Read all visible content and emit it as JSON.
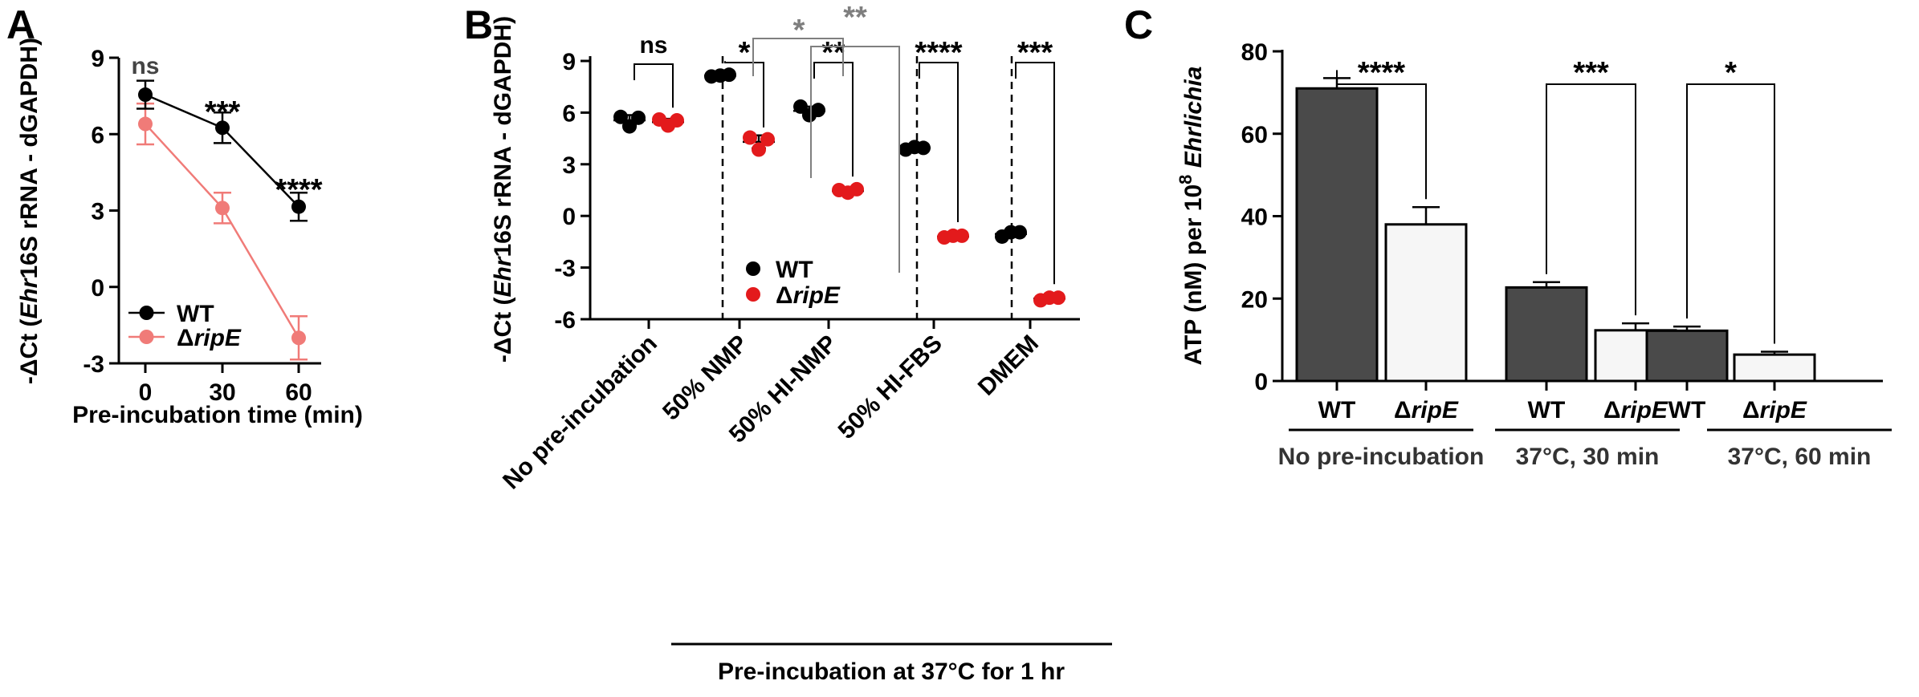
{
  "chart_data": [
    {
      "panel": "A",
      "type": "line",
      "ylabel": "-ΔCt (Ehr16S rRNA - dGAPDH)",
      "ylabel_parts": [
        "-ΔCt (",
        "Ehr",
        "16S rRNA - dGAPDH)"
      ],
      "xlabel": "Pre-incubation time (min)",
      "x": [
        0,
        30,
        60
      ],
      "x_tick_labels": [
        "0",
        "30",
        "60"
      ],
      "ylim": [
        -3,
        9
      ],
      "y_ticks": [
        -3,
        0,
        3,
        6,
        9
      ],
      "series": [
        {
          "name": "WT",
          "name_prefix": "",
          "name_italic": "WT",
          "color": "#000000",
          "values": [
            7.55,
            6.25,
            3.15
          ],
          "errors": [
            0.55,
            0.6,
            0.55
          ]
        },
        {
          "name": "ΔripE",
          "name_prefix": "Δ",
          "name_italic": "ripE",
          "color": "#f07b78",
          "values": [
            6.4,
            3.1,
            -2.0
          ],
          "errors": [
            0.8,
            0.6,
            0.85
          ]
        }
      ],
      "significance": [
        "ns",
        "***",
        "****"
      ],
      "legend": "bottom-left"
    },
    {
      "panel": "B",
      "type": "scatter",
      "ylabel": "-ΔCt (Ehr16S rRNA - dGAPDH)",
      "ylabel_parts": [
        "-ΔCt (",
        "Ehr",
        "16S rRNA - dGAPDH)"
      ],
      "ylim": [
        -6,
        9
      ],
      "y_ticks": [
        -6,
        -3,
        0,
        3,
        6,
        9
      ],
      "categories": [
        "No pre-incubation",
        "50% NMP",
        "50% HI-NMP",
        "50% HI-FBS",
        "DMEM"
      ],
      "group_label": "Pre-incubation at 37°C for 1 hr",
      "series": [
        {
          "name": "WT",
          "name_prefix": "",
          "name_italic": "WT",
          "color": "#000000",
          "points": [
            [
              5.75,
              5.2,
              5.7
            ],
            [
              8.1,
              8.15,
              8.2
            ],
            [
              6.35,
              5.85,
              6.15
            ],
            [
              3.85,
              4.0,
              3.95
            ],
            [
              -1.2,
              -0.95,
              -0.95
            ]
          ],
          "means": [
            5.55,
            8.15,
            6.1,
            3.95,
            -1.05
          ]
        },
        {
          "name": "ΔripE",
          "name_prefix": "Δ",
          "name_italic": "ripE",
          "color": "#e31a1c",
          "points": [
            [
              5.6,
              5.25,
              5.55
            ],
            [
              4.55,
              3.85,
              4.45
            ],
            [
              1.5,
              1.35,
              1.55
            ],
            [
              -1.25,
              -1.15,
              -1.15
            ],
            [
              -4.9,
              -4.75,
              -4.75
            ]
          ],
          "means": [
            5.45,
            4.3,
            1.45,
            -1.2,
            -4.8
          ]
        }
      ],
      "significance_within": [
        "ns",
        "*",
        "**",
        "****",
        "***"
      ],
      "significance_between": [
        {
          "label": "*",
          "color": "#7f7f7f"
        },
        {
          "label": "**",
          "color": "#7f7f7f"
        }
      ],
      "legend": "bottom-left"
    },
    {
      "panel": "C",
      "type": "bar",
      "ylabel": "ATP (nM) per 10^8 Ehrlichia",
      "ylabel_parts": [
        "ATP (nM) per 10",
        "8",
        " ",
        "Ehrlichia"
      ],
      "ylim": [
        0,
        80
      ],
      "y_ticks": [
        0,
        20,
        40,
        60,
        80
      ],
      "categories": [
        "WT",
        "ΔripE",
        "WT",
        "ΔripE",
        "WT",
        "ΔripE"
      ],
      "category_parts": [
        [
          "WT",
          ""
        ],
        [
          "Δ",
          "ripE"
        ],
        [
          "WT",
          ""
        ],
        [
          "Δ",
          "ripE"
        ],
        [
          "WT",
          ""
        ],
        [
          "Δ",
          "ripE"
        ]
      ],
      "values": [
        71.0,
        38.0,
        22.7,
        12.3,
        12.2,
        6.4
      ],
      "errors": [
        2.5,
        4.2,
        1.3,
        1.7,
        1.0,
        0.7
      ],
      "bar_colors": [
        "#4a4a4a",
        "#f6f6f6",
        "#4a4a4a",
        "#f6f6f6",
        "#4a4a4a",
        "#f6f6f6"
      ],
      "groups": [
        "No pre-incubation",
        "37°C, 30 min",
        "37°C, 60 min"
      ],
      "significance": [
        "****",
        "***",
        "*"
      ]
    }
  ],
  "panel_labels": [
    "A",
    "B",
    "C"
  ]
}
